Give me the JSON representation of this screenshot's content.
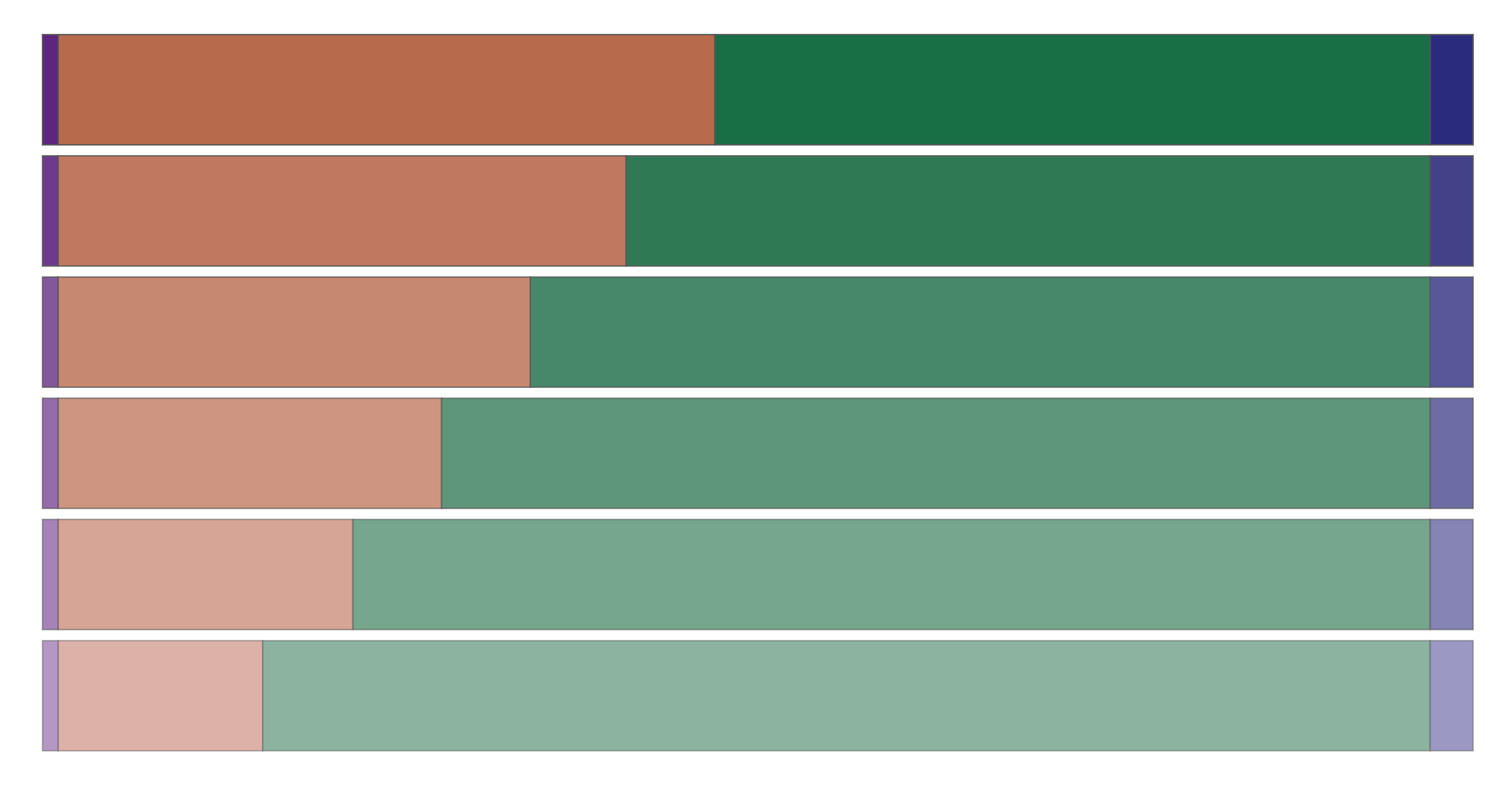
{
  "chart_data": {
    "type": "stacked-hbar",
    "xlim": [
      0,
      100
    ],
    "series": [
      {
        "colors": [
          "#5e2580",
          "#6e3a8d",
          "#82579c",
          "#946bab",
          "#a583b8",
          "#b497c4"
        ],
        "values": [
          1.1,
          1.1,
          1.1,
          1.1,
          1.1,
          1.1
        ]
      },
      {
        "colors": [
          "#b86a4d",
          "#c07860",
          "#c78870",
          "#ce9580",
          "#d6a595",
          "#dcb2a8"
        ],
        "values": [
          45.9,
          39.7,
          33.0,
          26.8,
          20.6,
          14.3
        ]
      },
      {
        "colors": [
          "#186e45",
          "#2f7a55",
          "#47886a",
          "#5d967b",
          "#76a78d",
          "#8cb39f"
        ],
        "values": [
          50.0,
          56.2,
          62.9,
          69.1,
          75.3,
          81.6
        ]
      },
      {
        "colors": [
          "#2b2b7d",
          "#434289",
          "#58579a",
          "#6d6ca5",
          "#8683b5",
          "#9b98c4"
        ],
        "values": [
          3.0,
          3.0,
          3.0,
          3.0,
          3.0,
          3.0
        ]
      }
    ]
  }
}
